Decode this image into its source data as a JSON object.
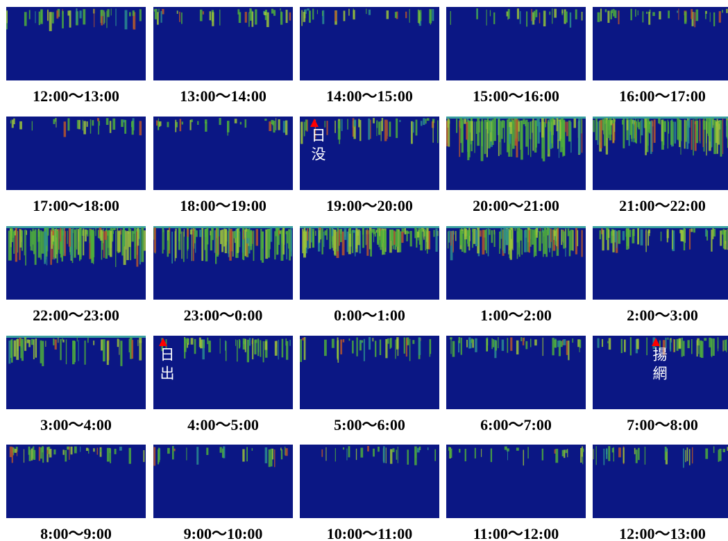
{
  "panels": [
    {
      "label": "12:00～13:00"
    },
    {
      "label": "13:00～14:00"
    },
    {
      "label": "14:00～15:00"
    },
    {
      "label": "15:00～16:00"
    },
    {
      "label": "16:00～17:00"
    },
    {
      "label": "17:00～18:00"
    },
    {
      "label": "18:00～19:00"
    },
    {
      "label": "19:00～20:00",
      "annotation": "日没"
    },
    {
      "label": "20:00～21:00"
    },
    {
      "label": "21:00～22:00"
    },
    {
      "label": "22:00～23:00"
    },
    {
      "label": "23:00～0:00"
    },
    {
      "label": "0:00～1:00"
    },
    {
      "label": "1:00～2:00"
    },
    {
      "label": "2:00～3:00"
    },
    {
      "label": "3:00～4:00"
    },
    {
      "label": "4:00～5:00",
      "annotation": "日出"
    },
    {
      "label": "5:00～6:00"
    },
    {
      "label": "6:00～7:00"
    },
    {
      "label": "7:00～8:00",
      "annotation": "揚網"
    },
    {
      "label": "8:00～9:00"
    },
    {
      "label": "9:00～10:00"
    },
    {
      "label": "10:00～11:00"
    },
    {
      "label": "11:00～12:00"
    },
    {
      "label": "12:00～13:00"
    }
  ]
}
